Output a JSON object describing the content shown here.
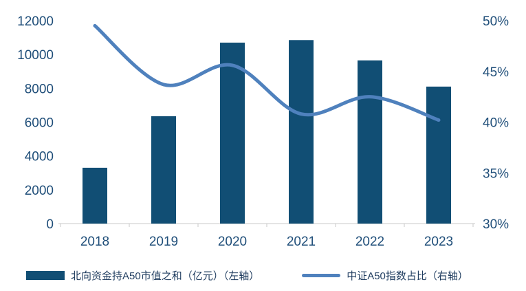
{
  "colors": {
    "bar": "#114e74",
    "line": "#4f81bd",
    "axis_text": "#1f4e79",
    "axis_line": "#c8c8c8",
    "legend_text": "#1f3c5f"
  },
  "chart_data": {
    "type": "combo",
    "title": "",
    "categories": [
      "2018",
      "2019",
      "2020",
      "2021",
      "2022",
      "2023"
    ],
    "series": [
      {
        "name": "北向资金持A50市值之和（亿元）（左轴）",
        "type": "bar",
        "axis": "left",
        "color": "#114e74",
        "values": [
          3300,
          6350,
          10700,
          10850,
          9650,
          8100
        ]
      },
      {
        "name": "中证A50指数占比（右轴）",
        "type": "line",
        "axis": "right",
        "color": "#4f81bd",
        "values": [
          49.5,
          43.7,
          45.6,
          40.8,
          42.5,
          40.2
        ]
      }
    ],
    "left_axis": {
      "min": 0,
      "max": 12000,
      "step": 2000,
      "ticks": [
        "0",
        "2000",
        "4000",
        "6000",
        "8000",
        "10000",
        "12000"
      ]
    },
    "right_axis": {
      "min": 30,
      "max": 50,
      "step": 5,
      "ticks": [
        "30%",
        "35%",
        "40%",
        "45%",
        "50%"
      ]
    },
    "grid": false,
    "legend_position": "bottom"
  }
}
